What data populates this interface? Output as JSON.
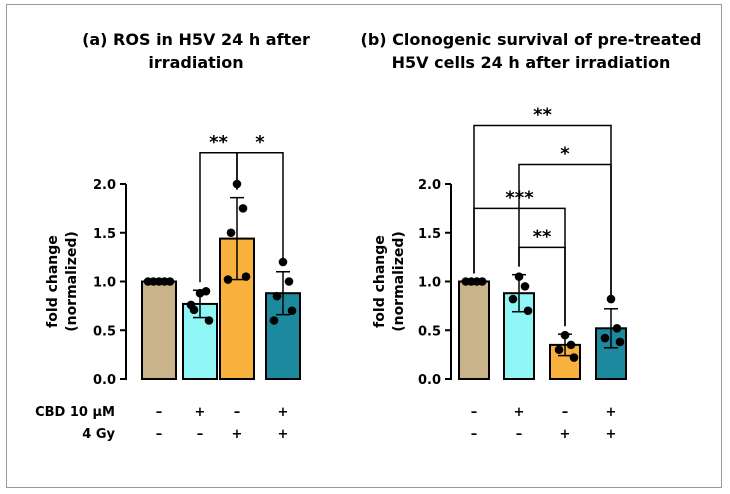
{
  "chart_data": [
    {
      "type": "bar",
      "title_lines": [
        "(a) ROS in H5V 24 h after",
        "irradiation"
      ],
      "ylabel_lines": [
        "fold change",
        "(normalized)"
      ],
      "ylim": [
        0,
        2.0
      ],
      "yticks": [
        "0.0",
        "0.5",
        "1.0",
        "1.5",
        "2.0"
      ],
      "ytick_values": [
        0,
        0.5,
        1.0,
        1.5,
        2.0
      ],
      "bar_colors": [
        "#c8b38b",
        "#8ff5f5",
        "#f8b13c",
        "#1c899e"
      ],
      "values": [
        1.0,
        0.77,
        1.44,
        0.88
      ],
      "errors": [
        0.0,
        0.14,
        0.42,
        0.22
      ],
      "points": [
        [
          1.0,
          1.0,
          1.0,
          1.0,
          1.0
        ],
        [
          0.88,
          0.9,
          0.71,
          0.6,
          0.76
        ],
        [
          2.0,
          1.75,
          1.5,
          1.05,
          1.02
        ],
        [
          1.2,
          1.0,
          0.85,
          0.7,
          0.6
        ]
      ],
      "significance": [
        {
          "from": 1,
          "to": 2,
          "label": "**",
          "y": 2.32
        },
        {
          "from": 2,
          "to": 3,
          "label": "*",
          "y": 2.32
        }
      ]
    },
    {
      "type": "bar",
      "title_lines": [
        "(b) Clonogenic survival of pre-treated",
        "H5V cells 24 h after irradiation"
      ],
      "ylabel_lines": [
        "fold change",
        "(normalized)"
      ],
      "ylim": [
        0,
        2.0
      ],
      "yticks": [
        "0.0",
        "0.5",
        "1.0",
        "1.5",
        "2.0"
      ],
      "ytick_values": [
        0,
        0.5,
        1.0,
        1.5,
        2.0
      ],
      "bar_colors": [
        "#c8b38b",
        "#8ff5f5",
        "#f8b13c",
        "#1c899e"
      ],
      "values": [
        1.0,
        0.88,
        0.35,
        0.52
      ],
      "errors": [
        0.0,
        0.19,
        0.11,
        0.2
      ],
      "points": [
        [
          1.0,
          1.0,
          1.0,
          1.0
        ],
        [
          1.05,
          0.95,
          0.82,
          0.7
        ],
        [
          0.45,
          0.35,
          0.3,
          0.22
        ],
        [
          0.82,
          0.52,
          0.42,
          0.38
        ]
      ],
      "significance": [
        {
          "from": 0,
          "to": 3,
          "label": "**",
          "y": 2.6
        },
        {
          "from": 1,
          "to": 3,
          "label": "*",
          "y": 2.2
        },
        {
          "from": 0,
          "to": 2,
          "label": "***",
          "y": 1.75
        },
        {
          "from": 1,
          "to": 2,
          "label": "**",
          "y": 1.35
        }
      ]
    }
  ],
  "conditions": {
    "rows": [
      {
        "label": "CBD 10 µM",
        "values": [
          "–",
          "+",
          "–",
          "+"
        ]
      },
      {
        "label": "4 Gy",
        "values": [
          "–",
          "–",
          "+",
          "+"
        ]
      }
    ]
  }
}
